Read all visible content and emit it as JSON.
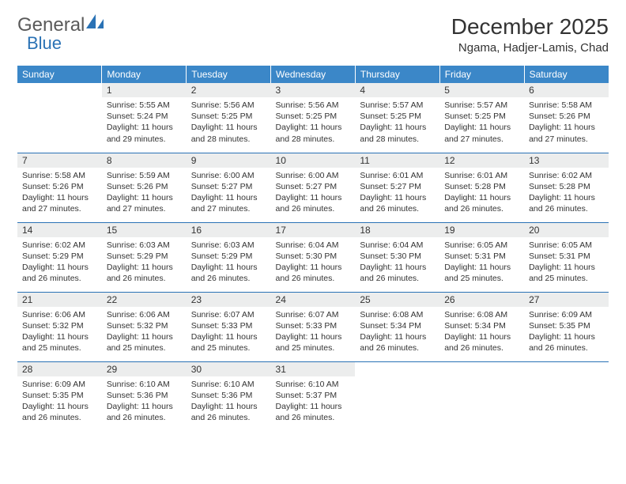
{
  "brand": {
    "part1": "General",
    "part2": "Blue"
  },
  "title": "December 2025",
  "location": "Ngama, Hadjer-Lamis, Chad",
  "colors": {
    "header_bg": "#3b87c8",
    "header_text": "#ffffff",
    "daynum_bg": "#eceded",
    "rule": "#2a72b5",
    "text": "#333333",
    "brand_gray": "#5a5a5a",
    "brand_blue": "#2a72b5"
  },
  "day_headers": [
    "Sunday",
    "Monday",
    "Tuesday",
    "Wednesday",
    "Thursday",
    "Friday",
    "Saturday"
  ],
  "weeks": [
    [
      {
        "n": "",
        "lines": []
      },
      {
        "n": "1",
        "lines": [
          "Sunrise: 5:55 AM",
          "Sunset: 5:24 PM",
          "Daylight: 11 hours and 29 minutes."
        ]
      },
      {
        "n": "2",
        "lines": [
          "Sunrise: 5:56 AM",
          "Sunset: 5:25 PM",
          "Daylight: 11 hours and 28 minutes."
        ]
      },
      {
        "n": "3",
        "lines": [
          "Sunrise: 5:56 AM",
          "Sunset: 5:25 PM",
          "Daylight: 11 hours and 28 minutes."
        ]
      },
      {
        "n": "4",
        "lines": [
          "Sunrise: 5:57 AM",
          "Sunset: 5:25 PM",
          "Daylight: 11 hours and 28 minutes."
        ]
      },
      {
        "n": "5",
        "lines": [
          "Sunrise: 5:57 AM",
          "Sunset: 5:25 PM",
          "Daylight: 11 hours and 27 minutes."
        ]
      },
      {
        "n": "6",
        "lines": [
          "Sunrise: 5:58 AM",
          "Sunset: 5:26 PM",
          "Daylight: 11 hours and 27 minutes."
        ]
      }
    ],
    [
      {
        "n": "7",
        "lines": [
          "Sunrise: 5:58 AM",
          "Sunset: 5:26 PM",
          "Daylight: 11 hours and 27 minutes."
        ]
      },
      {
        "n": "8",
        "lines": [
          "Sunrise: 5:59 AM",
          "Sunset: 5:26 PM",
          "Daylight: 11 hours and 27 minutes."
        ]
      },
      {
        "n": "9",
        "lines": [
          "Sunrise: 6:00 AM",
          "Sunset: 5:27 PM",
          "Daylight: 11 hours and 27 minutes."
        ]
      },
      {
        "n": "10",
        "lines": [
          "Sunrise: 6:00 AM",
          "Sunset: 5:27 PM",
          "Daylight: 11 hours and 26 minutes."
        ]
      },
      {
        "n": "11",
        "lines": [
          "Sunrise: 6:01 AM",
          "Sunset: 5:27 PM",
          "Daylight: 11 hours and 26 minutes."
        ]
      },
      {
        "n": "12",
        "lines": [
          "Sunrise: 6:01 AM",
          "Sunset: 5:28 PM",
          "Daylight: 11 hours and 26 minutes."
        ]
      },
      {
        "n": "13",
        "lines": [
          "Sunrise: 6:02 AM",
          "Sunset: 5:28 PM",
          "Daylight: 11 hours and 26 minutes."
        ]
      }
    ],
    [
      {
        "n": "14",
        "lines": [
          "Sunrise: 6:02 AM",
          "Sunset: 5:29 PM",
          "Daylight: 11 hours and 26 minutes."
        ]
      },
      {
        "n": "15",
        "lines": [
          "Sunrise: 6:03 AM",
          "Sunset: 5:29 PM",
          "Daylight: 11 hours and 26 minutes."
        ]
      },
      {
        "n": "16",
        "lines": [
          "Sunrise: 6:03 AM",
          "Sunset: 5:29 PM",
          "Daylight: 11 hours and 26 minutes."
        ]
      },
      {
        "n": "17",
        "lines": [
          "Sunrise: 6:04 AM",
          "Sunset: 5:30 PM",
          "Daylight: 11 hours and 26 minutes."
        ]
      },
      {
        "n": "18",
        "lines": [
          "Sunrise: 6:04 AM",
          "Sunset: 5:30 PM",
          "Daylight: 11 hours and 26 minutes."
        ]
      },
      {
        "n": "19",
        "lines": [
          "Sunrise: 6:05 AM",
          "Sunset: 5:31 PM",
          "Daylight: 11 hours and 25 minutes."
        ]
      },
      {
        "n": "20",
        "lines": [
          "Sunrise: 6:05 AM",
          "Sunset: 5:31 PM",
          "Daylight: 11 hours and 25 minutes."
        ]
      }
    ],
    [
      {
        "n": "21",
        "lines": [
          "Sunrise: 6:06 AM",
          "Sunset: 5:32 PM",
          "Daylight: 11 hours and 25 minutes."
        ]
      },
      {
        "n": "22",
        "lines": [
          "Sunrise: 6:06 AM",
          "Sunset: 5:32 PM",
          "Daylight: 11 hours and 25 minutes."
        ]
      },
      {
        "n": "23",
        "lines": [
          "Sunrise: 6:07 AM",
          "Sunset: 5:33 PM",
          "Daylight: 11 hours and 25 minutes."
        ]
      },
      {
        "n": "24",
        "lines": [
          "Sunrise: 6:07 AM",
          "Sunset: 5:33 PM",
          "Daylight: 11 hours and 25 minutes."
        ]
      },
      {
        "n": "25",
        "lines": [
          "Sunrise: 6:08 AM",
          "Sunset: 5:34 PM",
          "Daylight: 11 hours and 26 minutes."
        ]
      },
      {
        "n": "26",
        "lines": [
          "Sunrise: 6:08 AM",
          "Sunset: 5:34 PM",
          "Daylight: 11 hours and 26 minutes."
        ]
      },
      {
        "n": "27",
        "lines": [
          "Sunrise: 6:09 AM",
          "Sunset: 5:35 PM",
          "Daylight: 11 hours and 26 minutes."
        ]
      }
    ],
    [
      {
        "n": "28",
        "lines": [
          "Sunrise: 6:09 AM",
          "Sunset: 5:35 PM",
          "Daylight: 11 hours and 26 minutes."
        ]
      },
      {
        "n": "29",
        "lines": [
          "Sunrise: 6:10 AM",
          "Sunset: 5:36 PM",
          "Daylight: 11 hours and 26 minutes."
        ]
      },
      {
        "n": "30",
        "lines": [
          "Sunrise: 6:10 AM",
          "Sunset: 5:36 PM",
          "Daylight: 11 hours and 26 minutes."
        ]
      },
      {
        "n": "31",
        "lines": [
          "Sunrise: 6:10 AM",
          "Sunset: 5:37 PM",
          "Daylight: 11 hours and 26 minutes."
        ]
      },
      {
        "n": "",
        "lines": []
      },
      {
        "n": "",
        "lines": []
      },
      {
        "n": "",
        "lines": []
      }
    ]
  ]
}
